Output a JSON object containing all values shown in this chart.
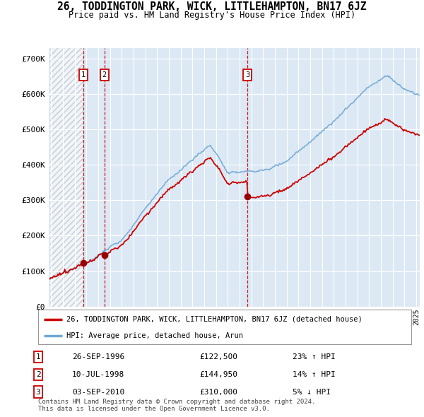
{
  "title": "26, TODDINGTON PARK, WICK, LITTLEHAMPTON, BN17 6JZ",
  "subtitle": "Price paid vs. HM Land Registry's House Price Index (HPI)",
  "background_color": "#ffffff",
  "plot_bg_color": "#dce9f5",
  "hatch_color": "#b8ccd8",
  "grid_color": "#ffffff",
  "hpi_color": "#6fa8d4",
  "price_color": "#cc0000",
  "sale_marker_color": "#990000",
  "vline_color": "#cc0000",
  "highlight_color": "#deeaf5",
  "xmin": 1993.8,
  "xmax": 2025.3,
  "ymin": 0,
  "ymax": 730000,
  "yticks": [
    0,
    100000,
    200000,
    300000,
    400000,
    500000,
    600000,
    700000
  ],
  "ytick_labels": [
    "£0",
    "£100K",
    "£200K",
    "£300K",
    "£400K",
    "£500K",
    "£600K",
    "£700K"
  ],
  "sale_points": [
    {
      "label": "1",
      "date_x": 1996.74,
      "price": 122500
    },
    {
      "label": "2",
      "date_x": 1998.53,
      "price": 144950
    },
    {
      "label": "3",
      "date_x": 2010.67,
      "price": 310000
    }
  ],
  "legend_line1": "26, TODDINGTON PARK, WICK, LITTLEHAMPTON, BN17 6JZ (detached house)",
  "legend_line2": "HPI: Average price, detached house, Arun",
  "table_rows": [
    {
      "num": "1",
      "date": "26-SEP-1996",
      "price": "£122,500",
      "hpi": "23% ↑ HPI"
    },
    {
      "num": "2",
      "date": "10-JUL-1998",
      "price": "£144,950",
      "hpi": "14% ↑ HPI"
    },
    {
      "num": "3",
      "date": "03-SEP-2010",
      "price": "£310,000",
      "hpi": "5% ↓ HPI"
    }
  ],
  "footnote": "Contains HM Land Registry data © Crown copyright and database right 2024.\nThis data is licensed under the Open Government Licence v3.0."
}
